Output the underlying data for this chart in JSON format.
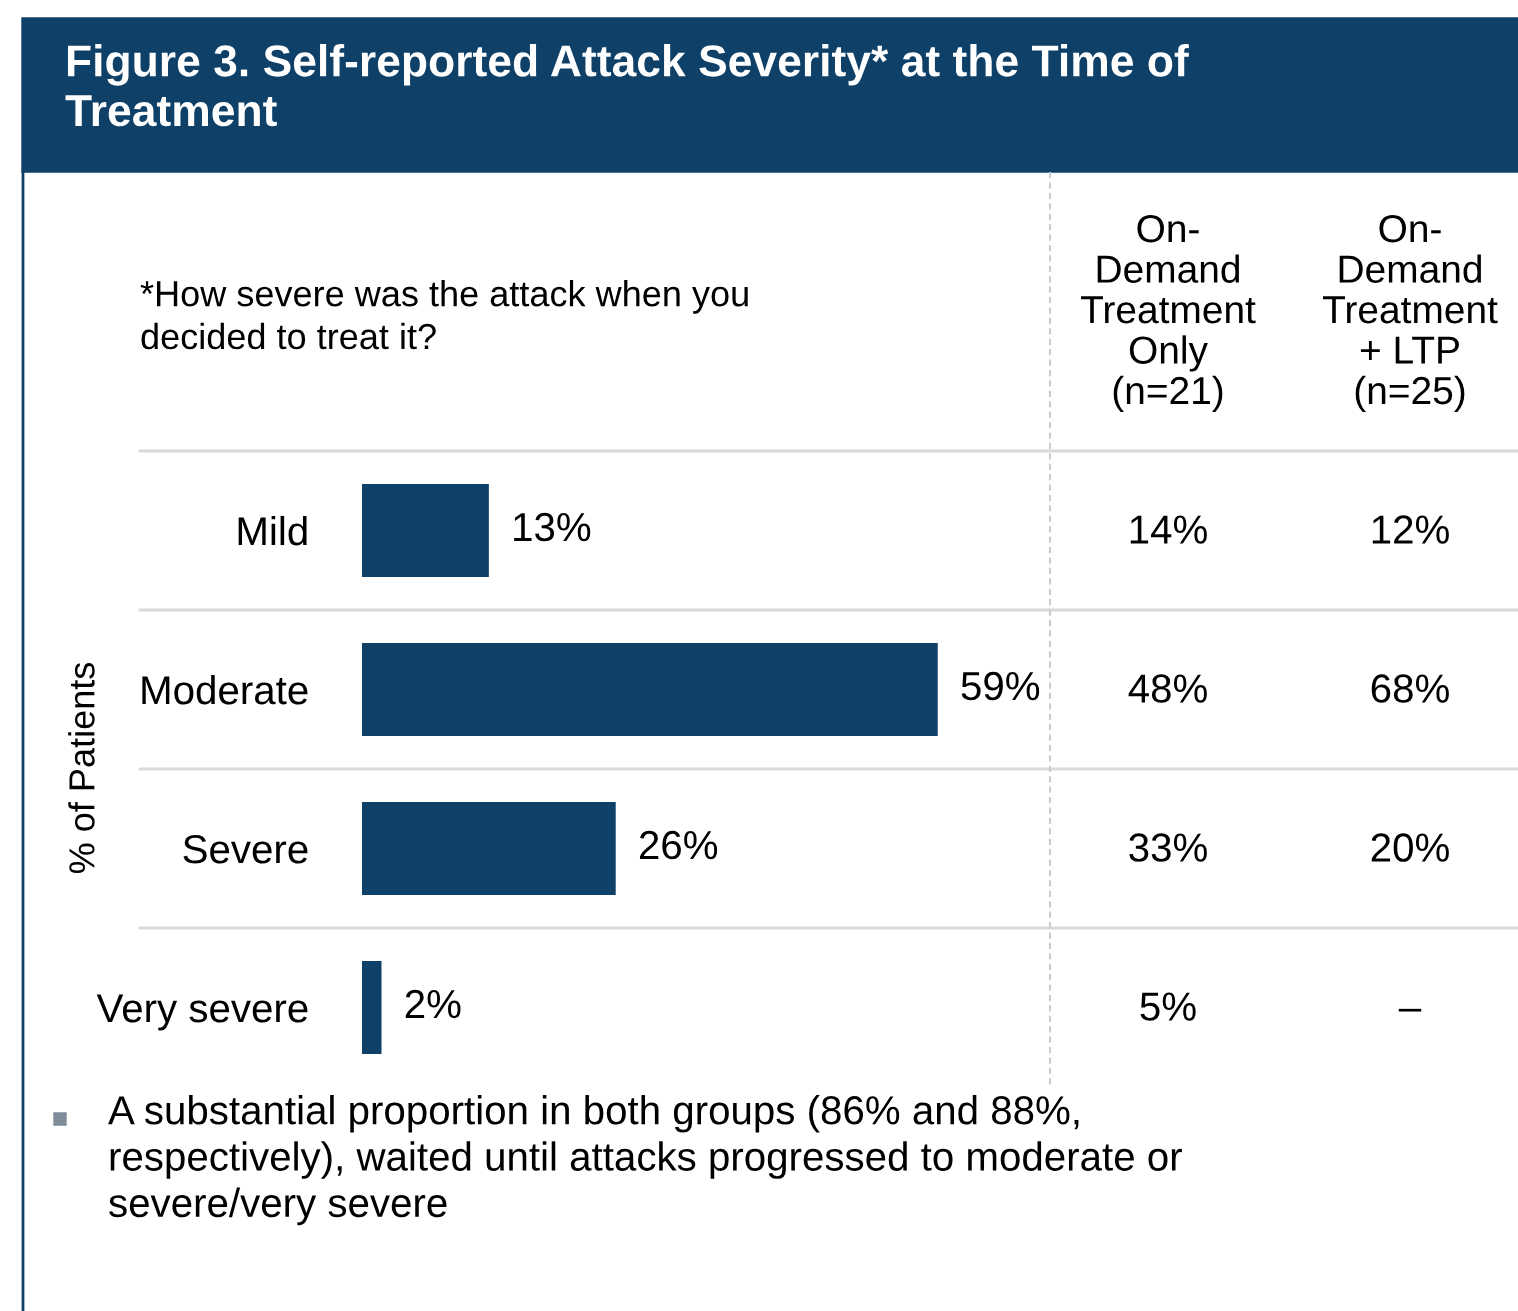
{
  "chart_data": {
    "type": "bar",
    "orientation": "horizontal",
    "title": "Figure 3. Self-reported Attack Severity* at the Time of\nTreatment",
    "ylabel": "% of Patients",
    "categories": [
      "Mild",
      "Moderate",
      "Severe",
      "Very severe"
    ],
    "values": [
      13,
      59,
      26,
      2
    ],
    "color": "#0f4068",
    "value_labels": [
      "13%",
      "59%",
      "26%",
      "2%"
    ],
    "tick_labels": "y",
    "grid": false,
    "legend": false,
    "annotations": [
      "*How severe was the attack when you\ndecided to treat it?",
      "On-\nDemand\nTreatment\nOnly\n(n=21)",
      "On-\nDemand\nTreatment\n+ LTP\n(n=25)",
      "14%",
      "12%",
      "48%",
      "68%",
      "33%",
      "20%",
      "5%",
      "–",
      "A substantial proportion in both groups (86% and 88%,\nrespectively), waited until attacks progressed to moderate or\nsevere/very severe"
    ]
  }
}
